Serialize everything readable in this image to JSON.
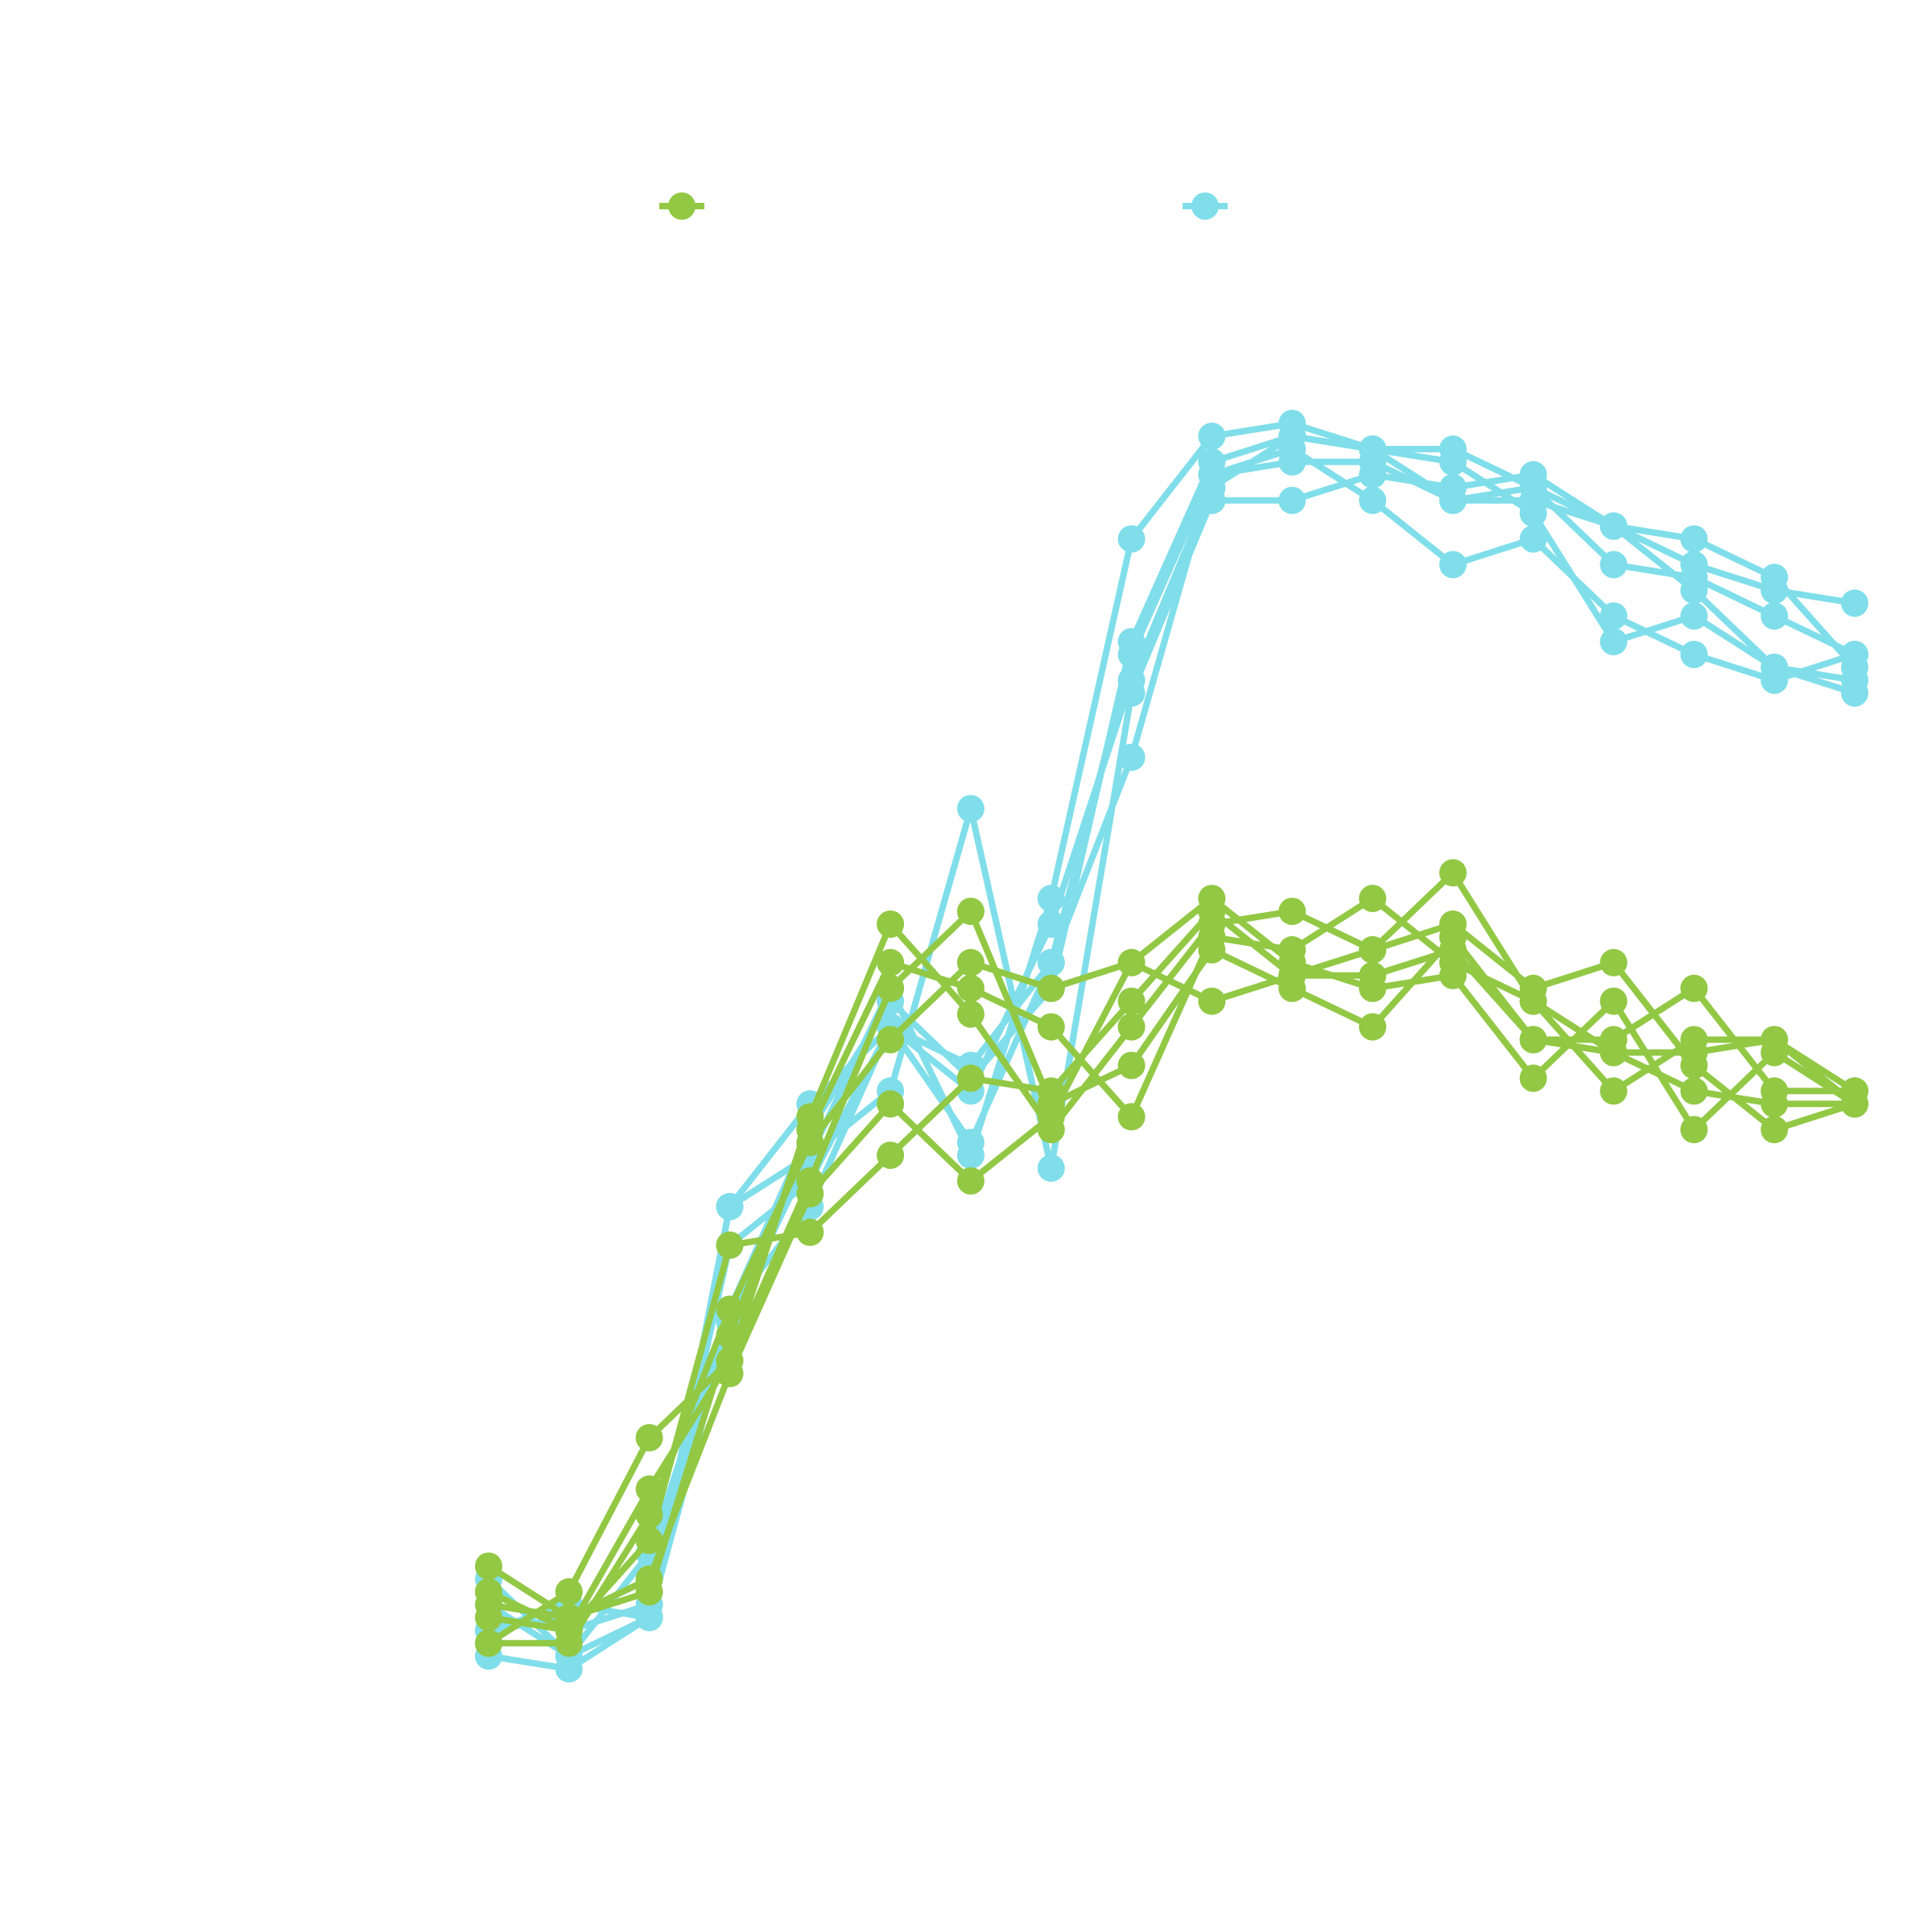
{
  "chart_data": {
    "type": "line",
    "title": "",
    "xlabel": "",
    "ylabel": "",
    "axes_visible": false,
    "grid": false,
    "legend_position": "top",
    "x": [
      0,
      1,
      2,
      3,
      4,
      5,
      6,
      7,
      8,
      9,
      10,
      11,
      12,
      13,
      14,
      15,
      16,
      17
    ],
    "xlim": [
      0,
      17
    ],
    "ylim": [
      0,
      1
    ],
    "colors": {
      "green": "#92c844",
      "cyan": "#80deea"
    },
    "legend": [
      {
        "color": "#92c844",
        "label": ""
      },
      {
        "color": "#80deea",
        "label": ""
      }
    ],
    "series": [
      {
        "color": "#80deea",
        "values": [
          0.03,
          0.02,
          0.06,
          0.38,
          0.42,
          0.47,
          0.69,
          0.41,
          0.78,
          0.93,
          0.93,
          0.95,
          0.94,
          0.95,
          0.91,
          0.88,
          0.86,
          0.85
        ]
      },
      {
        "color": "#80deea",
        "values": [
          0.05,
          0.06,
          0.09,
          0.3,
          0.38,
          0.52,
          0.49,
          0.57,
          0.73,
          0.95,
          0.96,
          0.96,
          0.93,
          0.93,
          0.91,
          0.9,
          0.87,
          0.8
        ]
      },
      {
        "color": "#80deea",
        "values": [
          0.07,
          0.03,
          0.06,
          0.29,
          0.42,
          0.55,
          0.42,
          0.62,
          0.9,
          0.98,
          0.99,
          0.97,
          0.96,
          0.92,
          0.82,
          0.84,
          0.8,
          0.79
        ]
      },
      {
        "color": "#80deea",
        "values": [
          0.08,
          0.05,
          0.07,
          0.35,
          0.4,
          0.52,
          0.43,
          0.57,
          0.81,
          0.95,
          0.97,
          0.93,
          0.88,
          0.9,
          0.84,
          0.81,
          0.79,
          0.81
        ]
      },
      {
        "color": "#80deea",
        "values": [
          0.09,
          0.03,
          0.11,
          0.3,
          0.44,
          0.54,
          0.48,
          0.55,
          0.82,
          0.96,
          0.98,
          0.97,
          0.97,
          0.94,
          0.91,
          0.86,
          0.8,
          0.78
        ]
      },
      {
        "color": "#80deea",
        "values": [
          0.05,
          0.07,
          0.06,
          0.38,
          0.46,
          0.52,
          0.47,
          0.6,
          0.79,
          0.94,
          0.98,
          0.97,
          0.93,
          0.94,
          0.88,
          0.87,
          0.84,
          0.81
        ]
      },
      {
        "color": "#92c844",
        "values": [
          0.06,
          0.05,
          0.16,
          0.26,
          0.45,
          0.6,
          0.53,
          0.44,
          0.52,
          0.6,
          0.61,
          0.58,
          0.6,
          0.55,
          0.57,
          0.49,
          0.44,
          0.46
        ]
      },
      {
        "color": "#92c844",
        "values": [
          0.08,
          0.05,
          0.12,
          0.35,
          0.36,
          0.42,
          0.48,
          0.47,
          0.54,
          0.61,
          0.56,
          0.56,
          0.58,
          0.51,
          0.51,
          0.55,
          0.47,
          0.47
        ]
      },
      {
        "color": "#92c844",
        "values": [
          0.04,
          0.08,
          0.2,
          0.26,
          0.4,
          0.55,
          0.61,
          0.46,
          0.49,
          0.58,
          0.55,
          0.52,
          0.59,
          0.51,
          0.5,
          0.5,
          0.51,
          0.46
        ]
      },
      {
        "color": "#92c844",
        "values": [
          0.1,
          0.06,
          0.09,
          0.25,
          0.39,
          0.46,
          0.4,
          0.45,
          0.57,
          0.62,
          0.57,
          0.55,
          0.56,
          0.48,
          0.54,
          0.44,
          0.5,
          0.46
        ]
      },
      {
        "color": "#92c844",
        "values": [
          0.04,
          0.04,
          0.14,
          0.3,
          0.43,
          0.51,
          0.57,
          0.55,
          0.57,
          0.54,
          0.56,
          0.58,
          0.64,
          0.54,
          0.5,
          0.47,
          0.46,
          0.46
        ]
      },
      {
        "color": "#92c844",
        "values": [
          0.07,
          0.06,
          0.08,
          0.28,
          0.44,
          0.57,
          0.55,
          0.52,
          0.45,
          0.59,
          0.58,
          0.62,
          0.57,
          0.54,
          0.47,
          0.51,
          0.51,
          0.47
        ]
      }
    ]
  }
}
